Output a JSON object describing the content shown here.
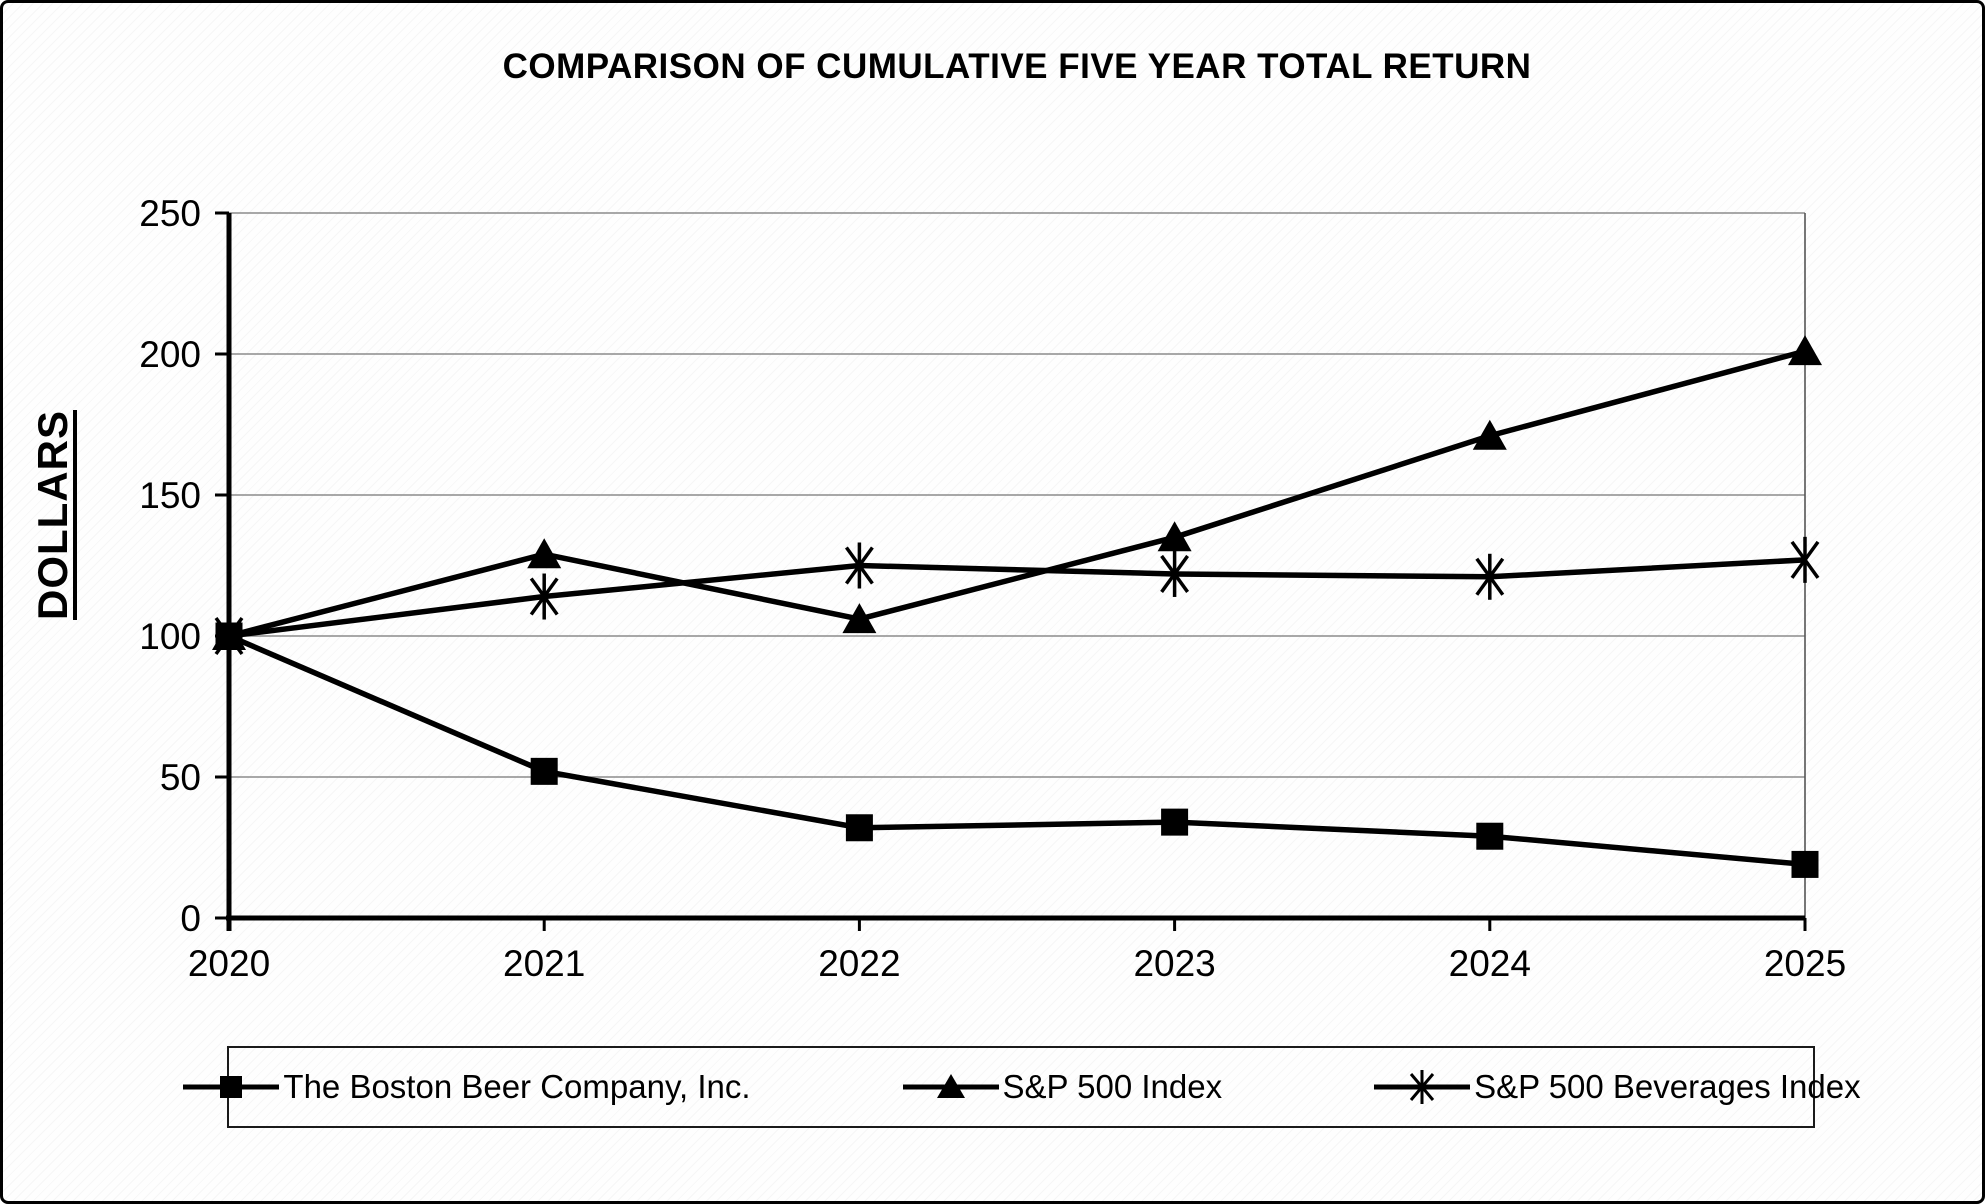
{
  "title": "COMPARISON OF CUMULATIVE FIVE YEAR TOTAL RETURN",
  "chart_data": {
    "type": "line",
    "title": "COMPARISON OF CUMULATIVE FIVE YEAR TOTAL RETURN",
    "xlabel": "",
    "ylabel": "DOLLARS",
    "x": [
      "2020",
      "2021",
      "2022",
      "2023",
      "2024",
      "2025"
    ],
    "y_ticks": [
      0,
      50,
      100,
      150,
      200,
      250
    ],
    "ylim": [
      0,
      250
    ],
    "grid": "horizontal",
    "legend_position": "bottom",
    "series": [
      {
        "name": "The Boston Beer Company, Inc.",
        "marker": "square",
        "values": [
          100,
          52,
          32,
          34,
          29,
          19
        ]
      },
      {
        "name": "S&P 500 Index",
        "marker": "triangle",
        "values": [
          100,
          129,
          106,
          135,
          171,
          201
        ]
      },
      {
        "name": "S&P 500 Beverages Index",
        "marker": "asterisk",
        "values": [
          100,
          114,
          125,
          122,
          121,
          127
        ]
      }
    ],
    "colors": {
      "series": "#000000",
      "grid": "#8c8c8c",
      "axis": "#000000",
      "plot_right_border": "#555555",
      "background": "#fefefe"
    }
  }
}
